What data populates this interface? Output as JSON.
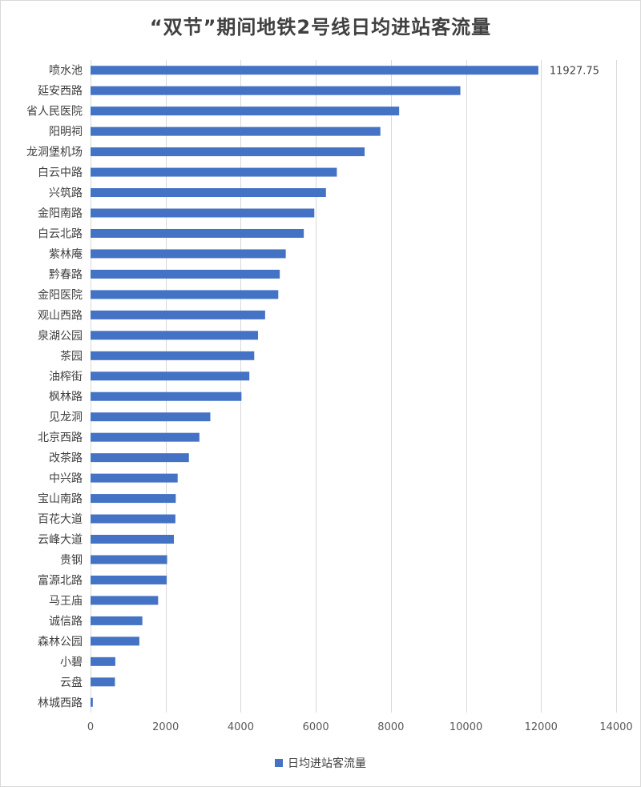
{
  "chart_data": {
    "type": "bar",
    "orientation": "horizontal",
    "title": "“双节”期间地铁2号线日均进站客流量",
    "categories": [
      "喷水池",
      "延安西路",
      "省人民医院",
      "阳明祠",
      "龙洞堡机场",
      "白云中路",
      "兴筑路",
      "金阳南路",
      "白云北路",
      "紫林庵",
      "黔春路",
      "金阳医院",
      "观山西路",
      "泉湖公园",
      "茶园",
      "油榨街",
      "枫林路",
      "见龙洞",
      "北京西路",
      "改茶路",
      "中兴路",
      "宝山南路",
      "百花大道",
      "云峰大道",
      "贵钢",
      "富源北路",
      "马王庙",
      "诚信路",
      "森林公园",
      "小碧",
      "云盘",
      "林城西路"
    ],
    "series": [
      {
        "name": "日均进站客流量",
        "color": "#4472C4",
        "values": [
          11927.75,
          9850,
          8220,
          7720,
          7300,
          6560,
          6270,
          5960,
          5680,
          5200,
          5040,
          5000,
          4650,
          4460,
          4360,
          4230,
          4020,
          3190,
          2900,
          2620,
          2320,
          2270,
          2260,
          2220,
          2040,
          2030,
          1800,
          1380,
          1300,
          660,
          650,
          60
        ]
      }
    ],
    "data_labels": [
      {
        "index": 0,
        "text": "11927.75"
      }
    ],
    "xlim": [
      0,
      14000
    ],
    "x_ticks": [
      0,
      2000,
      4000,
      6000,
      8000,
      10000,
      12000,
      14000
    ],
    "x_tick_labels": [
      "0",
      "2000",
      "4000",
      "6000",
      "8000",
      "10000",
      "12000",
      "14000"
    ],
    "grid": true,
    "legend_position": "bottom",
    "xlabel": "",
    "ylabel": ""
  }
}
